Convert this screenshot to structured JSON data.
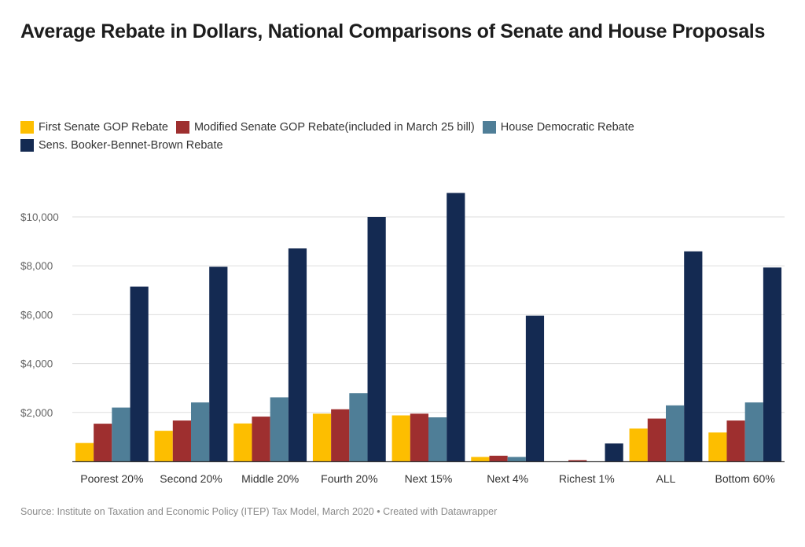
{
  "chart_data": {
    "type": "bar",
    "title": "Average Rebate in Dollars, National Comparisons of Senate and House Proposals",
    "xlabel": "",
    "ylabel": "",
    "ylim": [
      0,
      11000
    ],
    "yticks": [
      2000,
      4000,
      6000,
      8000,
      10000
    ],
    "ytick_labels": [
      "$2,000",
      "$4,000",
      "$6,000",
      "$8,000",
      "$10,000"
    ],
    "legend_position": "top-left",
    "categories": [
      "Poorest 20%",
      "Second 20%",
      "Middle 20%",
      "Fourth 20%",
      "Next 15%",
      "Next 4%",
      "Richest 1%",
      "ALL",
      "Bottom 60%"
    ],
    "series": [
      {
        "name": "First Senate GOP Rebate",
        "color": "#fdbe00",
        "values": [
          750,
          1250,
          1550,
          1950,
          1880,
          180,
          0,
          1340,
          1180
        ]
      },
      {
        "name": "Modified Senate GOP Rebate(included in March 25 bill)",
        "color": "#9e2f2f",
        "values": [
          1540,
          1670,
          1830,
          2130,
          1950,
          230,
          50,
          1750,
          1670
        ]
      },
      {
        "name": "House Democratic Rebate",
        "color": "#4f7e97",
        "values": [
          2200,
          2410,
          2620,
          2790,
          1800,
          180,
          0,
          2290,
          2410
        ]
      },
      {
        "name": "Sens. Booker-Bennet-Brown Rebate",
        "color": "#142a52",
        "values": [
          7150,
          7960,
          8710,
          10000,
          10980,
          5960,
          730,
          8590,
          7930
        ]
      }
    ]
  },
  "footer": {
    "text": "Source: Institute on Taxation and Economic Policy (ITEP) Tax Model, March 2020 • Created with Datawrapper"
  }
}
